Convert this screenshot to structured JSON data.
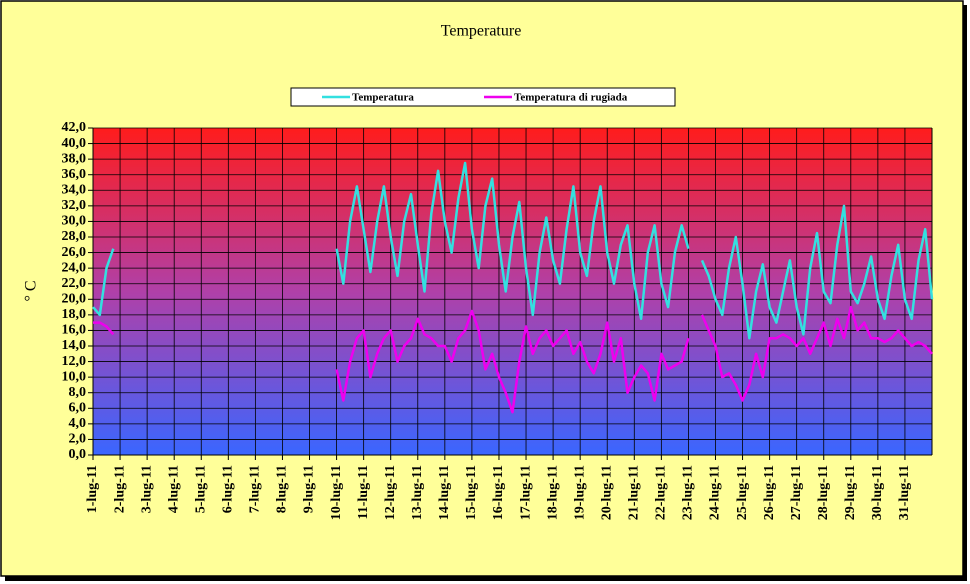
{
  "chart_data": {
    "type": "line",
    "title": "Temperature",
    "y_label": "° C",
    "categories": [
      "1-lug-11",
      null,
      null,
      null,
      "2-lug-11",
      null,
      null,
      null,
      "3-lug-11",
      null,
      null,
      null,
      "4-lug-11",
      null,
      null,
      null,
      "5-lug-11",
      null,
      null,
      null,
      "6-lug-11",
      null,
      null,
      null,
      "7-lug-11",
      null,
      null,
      null,
      "8-lug-11",
      null,
      null,
      null,
      "9-lug-11",
      null,
      null,
      null,
      "10-lug-11",
      null,
      null,
      null,
      "11-lug-11",
      null,
      null,
      null,
      "12-lug-11",
      null,
      null,
      null,
      "13-lug-11",
      null,
      null,
      null,
      "14-lug-11",
      null,
      null,
      null,
      "15-lug-11",
      null,
      null,
      null,
      "16-lug-11",
      null,
      null,
      null,
      "17-lug-11",
      null,
      null,
      null,
      "18-lug-11",
      null,
      null,
      null,
      "19-lug-11",
      null,
      null,
      null,
      "20-lug-11",
      null,
      null,
      null,
      "21-lug-11",
      null,
      null,
      null,
      "22-lug-11",
      null,
      null,
      null,
      "23-lug-11",
      null,
      null,
      null,
      "24-lug-11",
      null,
      null,
      null,
      "25-lug-11",
      null,
      null,
      null,
      "26-lug-11",
      null,
      null,
      null,
      "27-lug-11",
      null,
      null,
      null,
      "28-lug-11",
      null,
      null,
      null,
      "29-lug-11",
      null,
      null,
      null,
      "30-lug-11",
      null,
      null,
      null,
      "31-lug-11",
      null,
      null,
      null,
      null
    ],
    "series": [
      {
        "name": "Temperatura",
        "color": "#33e0e0",
        "values": [
          19,
          18,
          24,
          26.5,
          null,
          null,
          null,
          null,
          null,
          null,
          null,
          null,
          null,
          null,
          null,
          null,
          null,
          null,
          null,
          null,
          null,
          null,
          null,
          null,
          null,
          null,
          null,
          null,
          null,
          null,
          null,
          null,
          null,
          null,
          null,
          null,
          26.5,
          22,
          30,
          34.5,
          29,
          23.5,
          30,
          34.5,
          28,
          23,
          30,
          33.5,
          27,
          21,
          31,
          36.5,
          30,
          26,
          33,
          37.5,
          29,
          24,
          32,
          35.5,
          27,
          21,
          28,
          32.5,
          24,
          18,
          26,
          30.5,
          25,
          22,
          29,
          34.5,
          26,
          23,
          30,
          34.5,
          26,
          22,
          27,
          29.5,
          22,
          17.5,
          26,
          29.5,
          22,
          19,
          26,
          29.5,
          26.5,
          null,
          25,
          23,
          20,
          18,
          24,
          28,
          22,
          15,
          21,
          24.5,
          19,
          17,
          21,
          25,
          19,
          15.5,
          24,
          28.5,
          21,
          19.5,
          27,
          32,
          21,
          19.5,
          22,
          25.5,
          20,
          17.5,
          23,
          27,
          20,
          17.5,
          25,
          29,
          20
        ]
      },
      {
        "name": "Temperatura di rugiada",
        "color": "#ee00ee",
        "values": [
          17,
          17,
          16.5,
          15.5,
          null,
          null,
          null,
          null,
          null,
          null,
          null,
          null,
          null,
          null,
          null,
          null,
          null,
          null,
          null,
          null,
          null,
          null,
          null,
          null,
          null,
          null,
          null,
          null,
          null,
          null,
          null,
          null,
          null,
          null,
          null,
          null,
          11,
          7,
          12,
          15,
          16,
          10,
          13,
          15,
          16,
          12,
          14,
          15,
          17.5,
          15.5,
          15,
          14,
          14,
          12,
          15,
          16,
          18.5,
          16,
          11,
          13,
          10,
          8,
          5.5,
          12,
          16.5,
          13,
          15,
          16,
          14,
          15,
          16,
          13,
          14.5,
          12,
          10.5,
          13,
          17,
          12,
          15,
          8,
          10,
          11.5,
          10.5,
          7,
          13,
          11,
          11.5,
          12,
          15,
          null,
          18,
          16,
          14,
          10,
          10.5,
          9,
          7,
          9,
          13,
          10,
          15,
          15,
          15.5,
          15,
          14,
          15,
          13,
          15,
          17,
          14,
          17.5,
          15,
          19,
          16,
          17,
          15,
          15,
          14.5,
          15,
          16,
          15,
          14,
          14.5,
          14,
          13
        ]
      }
    ],
    "ylim": [
      0,
      42
    ],
    "yticks": [
      {
        "value": 0,
        "label": "0,0"
      },
      {
        "value": 2,
        "label": "2,0"
      },
      {
        "value": 4,
        "label": "4,0"
      },
      {
        "value": 6,
        "label": "6,0"
      },
      {
        "value": 8,
        "label": "8,0"
      },
      {
        "value": 10,
        "label": "10,0"
      },
      {
        "value": 12,
        "label": "12,0"
      },
      {
        "value": 14,
        "label": "14,0"
      },
      {
        "value": 16,
        "label": "16,0"
      },
      {
        "value": 18,
        "label": "18,0"
      },
      {
        "value": 20,
        "label": "20,0"
      },
      {
        "value": 22,
        "label": "22,0"
      },
      {
        "value": 24,
        "label": "24,0"
      },
      {
        "value": 26,
        "label": "26,0"
      },
      {
        "value": 28,
        "label": "28,0"
      },
      {
        "value": 30,
        "label": "30,0"
      },
      {
        "value": 32,
        "label": "32,0"
      },
      {
        "value": 34,
        "label": "34,0"
      },
      {
        "value": 36,
        "label": "36,0"
      },
      {
        "value": 38,
        "label": "38,0"
      },
      {
        "value": 40,
        "label": "40,0"
      },
      {
        "value": 42,
        "label": "42,0"
      }
    ],
    "grid": true,
    "legend": "top"
  }
}
